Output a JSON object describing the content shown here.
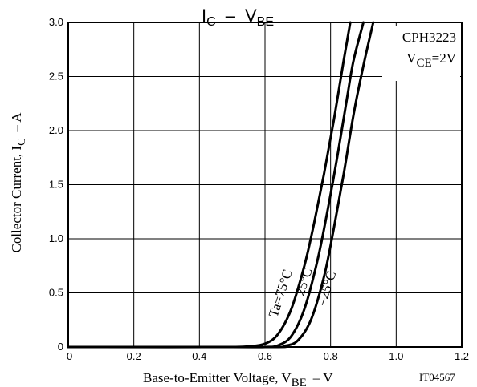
{
  "chart_data": {
    "type": "line",
    "title": {
      "main": "I",
      "sub1": "C",
      "dash": "–",
      "main2": "V",
      "sub2": "BE"
    },
    "xlabel": {
      "main": "Base-to-Emitter Voltage, V",
      "sub": "BE",
      "unit": "–  V"
    },
    "ylabel": {
      "main": "Collector Current, I",
      "sub": "C",
      "unit": "–  A"
    },
    "xlim": [
      0,
      1.2
    ],
    "ylim": [
      0,
      3.0
    ],
    "xticks": [
      0,
      0.2,
      0.4,
      0.6,
      0.8,
      1.0,
      1.2
    ],
    "xtick_labels": [
      "0",
      "0.2",
      "0.4",
      "0.6",
      "0.8",
      "1.0",
      "1.2"
    ],
    "yticks": [
      0,
      0.5,
      1.0,
      1.5,
      2.0,
      2.5,
      3.0
    ],
    "ytick_labels": [
      "0",
      "0.5",
      "1.0",
      "1.5",
      "2.0",
      "2.5",
      "3.0"
    ],
    "grid": true,
    "device": "CPH3223",
    "condition": {
      "main": "V",
      "sub": "CE",
      "val": "=2V"
    },
    "figure_id": "IT04567",
    "series": [
      {
        "name": "Ta=75°C",
        "x": [
          0.0,
          0.4,
          0.5,
          0.55,
          0.6,
          0.64,
          0.68,
          0.72,
          0.75,
          0.78,
          0.81,
          0.84,
          0.86
        ],
        "y": [
          0.0,
          0.0,
          0.0,
          0.005,
          0.03,
          0.12,
          0.35,
          0.75,
          1.15,
          1.6,
          2.1,
          2.65,
          3.0
        ]
      },
      {
        "name": "25°C",
        "x": [
          0.0,
          0.5,
          0.6,
          0.64,
          0.68,
          0.72,
          0.76,
          0.79,
          0.82,
          0.85,
          0.87,
          0.9
        ],
        "y": [
          0.0,
          0.0,
          0.0,
          0.015,
          0.1,
          0.35,
          0.8,
          1.25,
          1.75,
          2.3,
          2.65,
          3.0
        ]
      },
      {
        "name": "–25°C",
        "x": [
          0.0,
          0.6,
          0.66,
          0.7,
          0.74,
          0.78,
          0.81,
          0.84,
          0.87,
          0.9,
          0.93
        ],
        "y": [
          0.0,
          0.0,
          0.01,
          0.06,
          0.25,
          0.65,
          1.1,
          1.6,
          2.15,
          2.6,
          3.0
        ]
      }
    ],
    "curve_labels": [
      "Ta=75°C",
      "25°C",
      "–25°C"
    ]
  }
}
